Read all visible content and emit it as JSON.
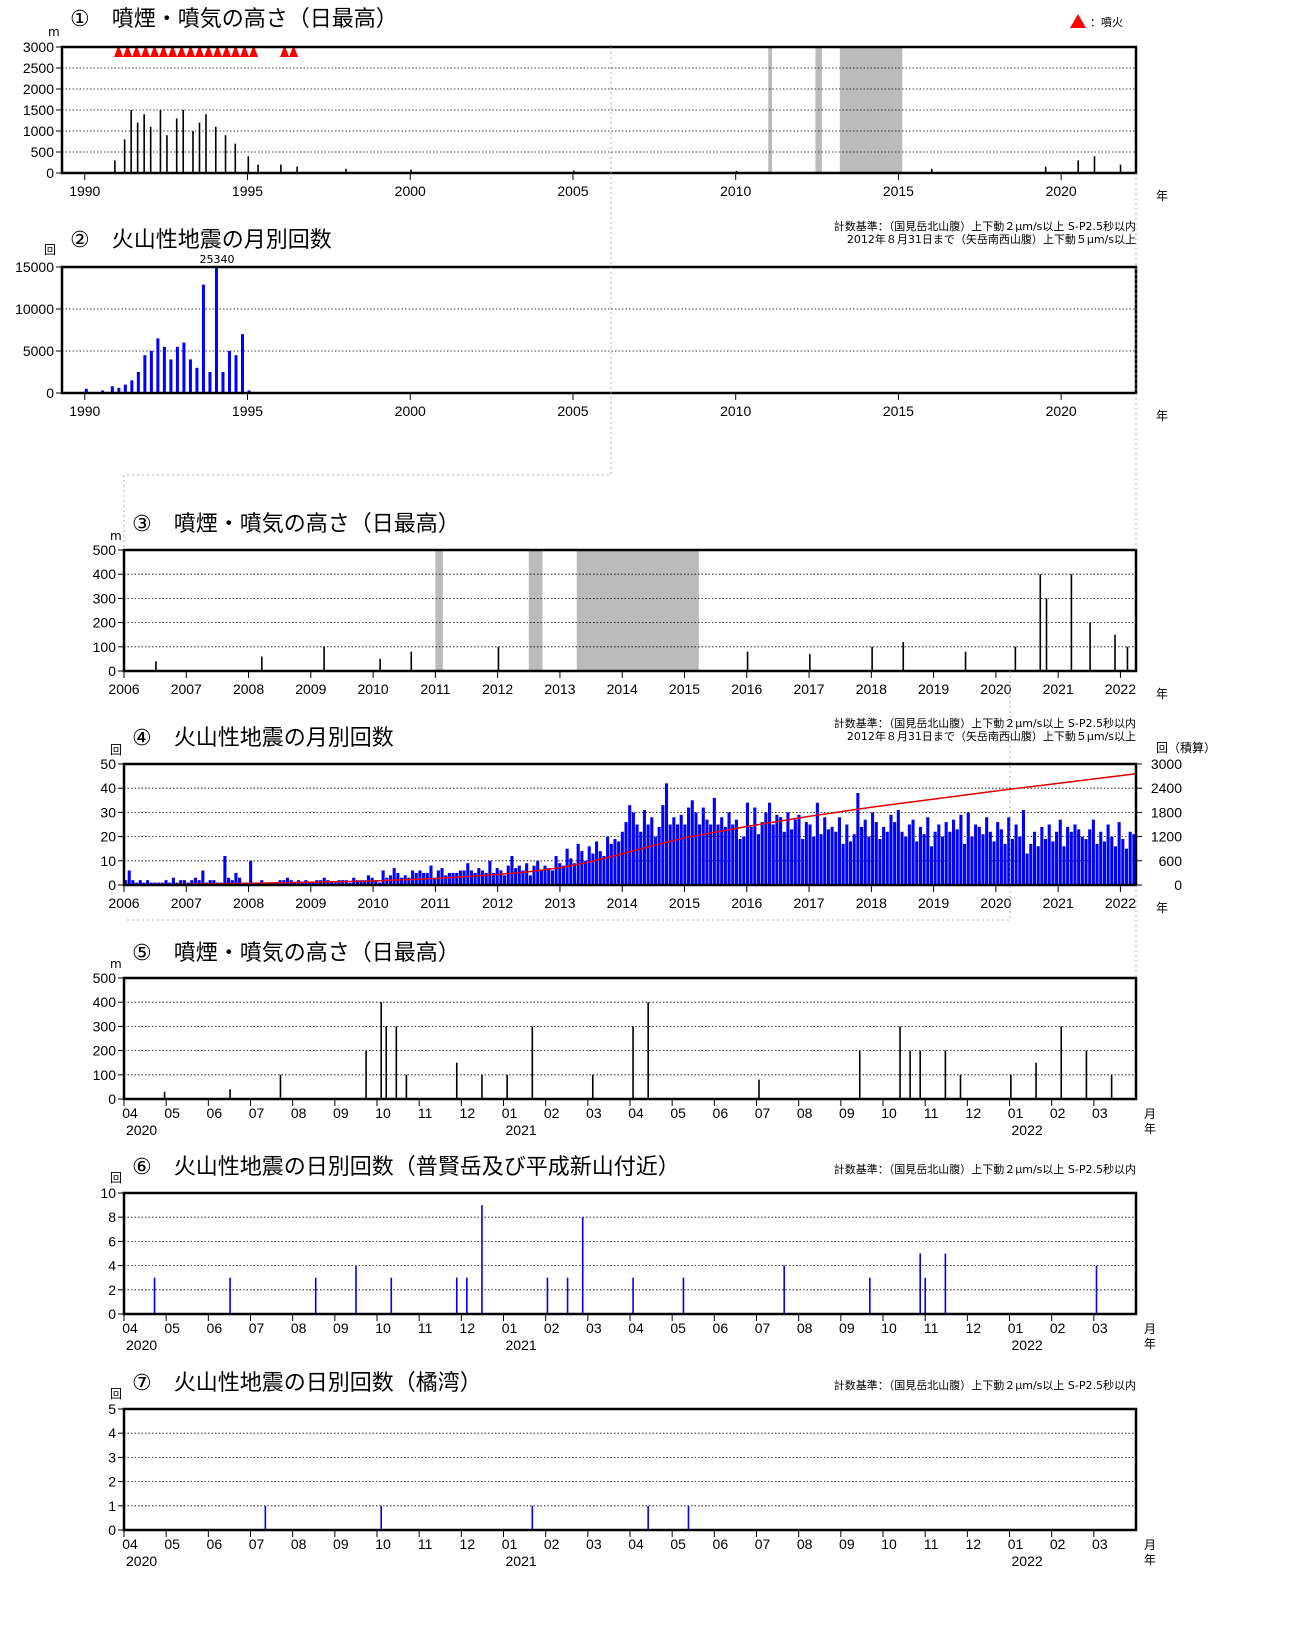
{
  "colors": {
    "plume": "#000000",
    "quake": "#0000ff",
    "eruption": "#ff0000",
    "missing": "#bbbbbb",
    "cumulative": "#e00000"
  },
  "legend_eruption": "：噴火",
  "criteria": {
    "line1": "計数基準：（国見岳北山腹）上下動２μm/s以上 S-P2.5秒以内",
    "line2": "2012年８月31日まで（矢岳南西山腹）上下動５μm/s以上"
  },
  "units": {
    "m": "m",
    "count": "回",
    "year": "年",
    "month": "月",
    "cumulative": "回（積算）"
  },
  "chart_data": [
    {
      "id": "p1",
      "type": "bar",
      "title": "①　噴煙・噴気の高さ（日最高）",
      "x_range": [
        1989.3,
        2022.3
      ],
      "ylim": [
        0,
        3000
      ],
      "y_ticks": [
        0,
        500,
        1000,
        1500,
        2000,
        2500,
        3000
      ],
      "x_ticks": [
        1990,
        1995,
        2000,
        2005,
        2010,
        2015,
        2020
      ],
      "missing_periods": [
        [
          2011.0,
          2011.12
        ],
        [
          2012.45,
          2012.65
        ],
        [
          2013.2,
          2015.12
        ]
      ],
      "eruption_periods": [
        [
          1990.9,
          1995.2
        ],
        [
          1996.0,
          1996.3
        ]
      ],
      "series": [
        {
          "x": [
            1990.9,
            1991.2,
            1991.4,
            1991.6,
            1991.8,
            1992.0,
            1992.3,
            1992.5,
            1992.8,
            1993.0,
            1993.3,
            1993.5,
            1993.7,
            1994.0,
            1994.3,
            1994.6,
            1995.0,
            1995.3,
            1996.0,
            1996.5,
            1998.0,
            2000.0,
            2005.0,
            2010.0,
            2016.0,
            2019.5,
            2020.5,
            2021.0,
            2021.8
          ],
          "values": [
            300,
            800,
            1500,
            1200,
            1400,
            1100,
            1500,
            900,
            1300,
            1500,
            1000,
            1200,
            1400,
            1100,
            900,
            700,
            400,
            200,
            200,
            150,
            100,
            80,
            60,
            50,
            100,
            150,
            300,
            400,
            200
          ]
        }
      ]
    },
    {
      "id": "p2",
      "type": "bar",
      "title": "②　火山性地震の月別回数",
      "x_range": [
        1989.3,
        2022.3
      ],
      "ylim": [
        0,
        15000
      ],
      "y_ticks": [
        0,
        5000,
        10000,
        15000
      ],
      "x_ticks": [
        1990,
        1995,
        2000,
        2005,
        2010,
        2015,
        2020
      ],
      "peak_label": "25340",
      "series": [
        {
          "x": [
            1990.0,
            1990.5,
            1990.8,
            1991.0,
            1991.2,
            1991.4,
            1991.6,
            1991.8,
            1992.0,
            1992.2,
            1992.4,
            1992.6,
            1992.8,
            1993.0,
            1993.2,
            1993.4,
            1993.6,
            1993.8,
            1994.0,
            1994.2,
            1994.4,
            1994.6,
            1994.8,
            1995.0
          ],
          "values": [
            500,
            300,
            800,
            600,
            1000,
            1500,
            2500,
            4500,
            5000,
            6500,
            5500,
            4000,
            5500,
            6000,
            4000,
            3000,
            12900,
            2500,
            15000,
            2500,
            5000,
            4500,
            7000,
            300
          ]
        }
      ]
    },
    {
      "id": "p3",
      "type": "bar",
      "title": "③　噴煙・噴気の高さ（日最高）",
      "x_range": [
        2006.0,
        2022.25
      ],
      "ylim": [
        0,
        500
      ],
      "y_ticks": [
        0,
        100,
        200,
        300,
        400,
        500
      ],
      "x_ticks": [
        2006,
        2007,
        2008,
        2009,
        2010,
        2011,
        2012,
        2013,
        2014,
        2015,
        2016,
        2017,
        2018,
        2019,
        2020,
        2021,
        2022
      ],
      "missing_periods": [
        [
          2011.0,
          2011.12
        ],
        [
          2012.5,
          2012.72
        ],
        [
          2013.27,
          2015.23
        ]
      ],
      "series": [
        {
          "x": [
            2006.5,
            2008.2,
            2009.2,
            2010.1,
            2010.6,
            2012.0,
            2016.0,
            2017.0,
            2018.0,
            2018.5,
            2019.5,
            2020.3,
            2020.7,
            2020.8,
            2021.2,
            2021.5,
            2021.9,
            2022.1
          ],
          "values": [
            40,
            60,
            100,
            50,
            80,
            100,
            80,
            70,
            100,
            120,
            80,
            100,
            400,
            300,
            400,
            200,
            150,
            100
          ]
        }
      ]
    },
    {
      "id": "p4",
      "type": "bar",
      "title": "④　火山性地震の月別回数",
      "x_range": [
        2006.0,
        2022.25
      ],
      "ylim": [
        0,
        50
      ],
      "y2lim": [
        0,
        3000
      ],
      "y_ticks": [
        0,
        10,
        20,
        30,
        40,
        50
      ],
      "y2_ticks": [
        0,
        600,
        1200,
        1800,
        2400,
        3000
      ],
      "x_ticks": [
        2006,
        2007,
        2008,
        2009,
        2010,
        2011,
        2012,
        2013,
        2014,
        2015,
        2016,
        2017,
        2018,
        2019,
        2020,
        2021,
        2022
      ],
      "series": [
        {
          "name": "monthly",
          "values": [
            2,
            6,
            2,
            1,
            2,
            1,
            2,
            1,
            1,
            1,
            1,
            2,
            1,
            3,
            1,
            2,
            2,
            1,
            2,
            3,
            2,
            6,
            1,
            2,
            2,
            1,
            1,
            12,
            3,
            2,
            5,
            3,
            1,
            1,
            10,
            1,
            1,
            2,
            1,
            1,
            1,
            1,
            2,
            2,
            3,
            2,
            1,
            2,
            1,
            2,
            1,
            1,
            2,
            2,
            3,
            2,
            1,
            1,
            2,
            2,
            2,
            1,
            3,
            2,
            2,
            2,
            4,
            3,
            2,
            1,
            6,
            3,
            4,
            7,
            5,
            3,
            4,
            3,
            6,
            5,
            6,
            5,
            5,
            8,
            3,
            6,
            7,
            4,
            5,
            5,
            5,
            6,
            6,
            9,
            6,
            5,
            7,
            6,
            5,
            10,
            5,
            7,
            6,
            4,
            8,
            12,
            7,
            8,
            6,
            9,
            4,
            8,
            10,
            6,
            8,
            7,
            6,
            12,
            9,
            8,
            15,
            11,
            9,
            17,
            14,
            10,
            16,
            13,
            18,
            14,
            12,
            20,
            17,
            19,
            18,
            22,
            26,
            33,
            30,
            25,
            22,
            31,
            25,
            28,
            20,
            24,
            33,
            42,
            25,
            28,
            25,
            29,
            25,
            32,
            35,
            30,
            25,
            32,
            27,
            25,
            36,
            25,
            28,
            24,
            30,
            25,
            27,
            19,
            20,
            34,
            24,
            32,
            21,
            26,
            30,
            34,
            25,
            29,
            28,
            22,
            30,
            23,
            27,
            29,
            19,
            26,
            25,
            20,
            34,
            21,
            28,
            23,
            24,
            22,
            28,
            17,
            25,
            18,
            21,
            38,
            24,
            27,
            20,
            30,
            26,
            19,
            24,
            22,
            29,
            26,
            31,
            22,
            20,
            25,
            27,
            18,
            24,
            21,
            28,
            16,
            22,
            25,
            20,
            26,
            22,
            27,
            23,
            29,
            17,
            30,
            20,
            25,
            24,
            21,
            28,
            22,
            18,
            26,
            23,
            17,
            28,
            19,
            25,
            20,
            31,
            13,
            17,
            22,
            16,
            24,
            19,
            25,
            18,
            22,
            27,
            16,
            24,
            22,
            25,
            23,
            20,
            19,
            23,
            27,
            17,
            22,
            18,
            25,
            20,
            16,
            26,
            19,
            15,
            22,
            21
          ]
        },
        {
          "name": "cumulative",
          "x": [
            2006.0,
            2008.0,
            2010.0,
            2011.0,
            2012.0,
            2012.5,
            2013.0,
            2013.5,
            2014.0,
            2014.5,
            2015.0,
            2016.0,
            2017.0,
            2018.0,
            2019.0,
            2020.0,
            2021.0,
            2022.25
          ],
          "values": [
            0,
            40,
            100,
            160,
            260,
            330,
            430,
            580,
            770,
            980,
            1170,
            1450,
            1700,
            1930,
            2130,
            2330,
            2520,
            2760
          ]
        }
      ]
    },
    {
      "id": "p5",
      "type": "bar",
      "title": "⑤　噴煙・噴気の高さ（日最高）",
      "x_range": [
        2020.241,
        2022.25
      ],
      "ylim": [
        0,
        500
      ],
      "y_ticks": [
        0,
        100,
        200,
        300,
        400,
        500
      ],
      "x_ticks": [
        "04",
        "05",
        "06",
        "07",
        "08",
        "09",
        "10",
        "11",
        "12",
        "01",
        "02",
        "03",
        "04",
        "05",
        "06",
        "07",
        "08",
        "09",
        "10",
        "11",
        "12",
        "01",
        "02",
        "03"
      ],
      "x_years": [
        "2020",
        "2021",
        "2022"
      ],
      "series": [
        {
          "x": [
            2020.32,
            2020.45,
            2020.55,
            2020.72,
            2020.75,
            2020.76,
            2020.78,
            2020.8,
            2020.9,
            2020.95,
            2021.0,
            2021.05,
            2021.17,
            2021.25,
            2021.28,
            2021.5,
            2021.7,
            2021.78,
            2021.8,
            2021.82,
            2021.87,
            2021.9,
            2022.0,
            2022.05,
            2022.1,
            2022.15,
            2022.2
          ],
          "values": [
            30,
            40,
            100,
            200,
            400,
            300,
            300,
            100,
            150,
            100,
            100,
            300,
            100,
            300,
            400,
            80,
            200,
            300,
            200,
            200,
            200,
            100,
            100,
            150,
            300,
            200,
            100
          ]
        }
      ]
    },
    {
      "id": "p6",
      "type": "bar",
      "title": "⑥　火山性地震の日別回数（普賢岳及び平成新山付近）",
      "x_range": [
        2020.241,
        2022.25
      ],
      "ylim": [
        0,
        10
      ],
      "y_ticks": [
        0,
        2,
        4,
        6,
        8,
        10
      ],
      "x_ticks": [
        "04",
        "05",
        "06",
        "07",
        "08",
        "09",
        "10",
        "11",
        "12",
        "01",
        "02",
        "03",
        "04",
        "05",
        "06",
        "07",
        "08",
        "09",
        "10",
        "11",
        "12",
        "01",
        "02",
        "03"
      ],
      "x_years": [
        "2020",
        "2021",
        "2022"
      ],
      "series": [
        {
          "x": [
            2020.3,
            2020.45,
            2020.62,
            2020.7,
            2020.77,
            2020.9,
            2020.92,
            2020.95,
            2021.08,
            2021.12,
            2021.15,
            2021.25,
            2021.35,
            2021.55,
            2021.72,
            2021.82,
            2021.83,
            2021.87,
            2022.17
          ],
          "values": [
            3,
            3,
            3,
            4,
            3,
            3,
            3,
            9,
            3,
            3,
            8,
            3,
            3,
            4,
            3,
            5,
            3,
            5,
            4
          ]
        }
      ]
    },
    {
      "id": "p7",
      "type": "bar",
      "title": "⑦　火山性地震の日別回数（橘湾）",
      "x_range": [
        2020.241,
        2022.25
      ],
      "ylim": [
        0,
        5
      ],
      "y_ticks": [
        0,
        1,
        2,
        3,
        4,
        5
      ],
      "x_ticks": [
        "04",
        "05",
        "06",
        "07",
        "08",
        "09",
        "10",
        "11",
        "12",
        "01",
        "02",
        "03",
        "04",
        "05",
        "06",
        "07",
        "08",
        "09",
        "10",
        "11",
        "12",
        "01",
        "02",
        "03"
      ],
      "x_years": [
        "2020",
        "2021",
        "2022"
      ],
      "series": [
        {
          "x": [
            2020.52,
            2020.75,
            2021.05,
            2021.28,
            2021.36
          ],
          "values": [
            1,
            1,
            1,
            1,
            1
          ]
        }
      ]
    }
  ]
}
